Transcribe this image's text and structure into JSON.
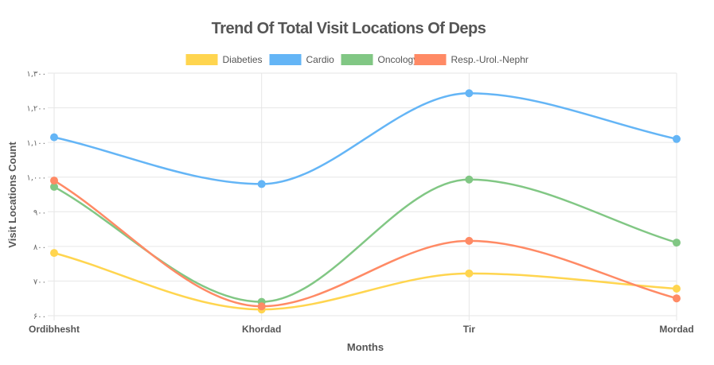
{
  "chart_data": {
    "type": "line",
    "title": "Trend Of Total Visit Locations Of Deps",
    "xlabel": "Months",
    "ylabel": "Visit Locations Count",
    "categories": [
      "Ordibhesht",
      "Khordad",
      "Tir",
      "Mordad"
    ],
    "ylim": [
      600,
      1300
    ],
    "yticks": [
      600,
      700,
      800,
      900,
      1000,
      1100,
      1200,
      1300
    ],
    "ytick_labels": [
      "۶۰۰",
      "۷۰۰",
      "۸۰۰",
      "۹۰۰",
      "۱,۰۰۰",
      "۱,۱۰۰",
      "۱,۲۰۰",
      "۱,۳۰۰"
    ],
    "grid": true,
    "legend_position": "top-center",
    "series": [
      {
        "name": "Diabeties",
        "color": "#ffd54f",
        "values": [
          781,
          618,
          722,
          678
        ]
      },
      {
        "name": "Cardio",
        "color": "#64b5f6",
        "values": [
          1115,
          980,
          1242,
          1110
        ]
      },
      {
        "name": "Oncology",
        "color": "#81c784",
        "values": [
          972,
          640,
          993,
          811
        ]
      },
      {
        "name": "Resp.-Urol.-Nephr",
        "color": "#ff8a65",
        "values": [
          990,
          627,
          816,
          650
        ]
      }
    ]
  }
}
